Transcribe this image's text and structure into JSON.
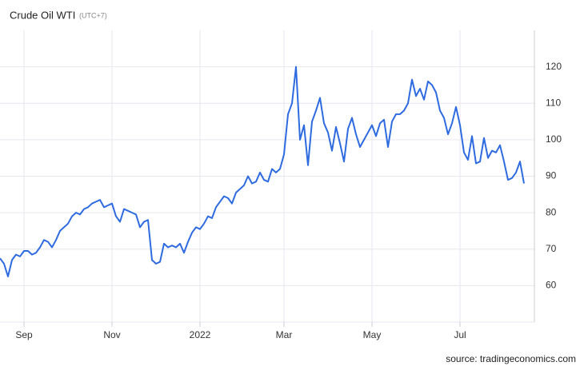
{
  "chart_data": {
    "type": "line",
    "title": "Crude Oil WTI",
    "subtitle": "(UTC+7)",
    "source": "source: tradingeconomics.com",
    "color": "#2e6be0",
    "grid": true,
    "ylim": [
      50,
      130
    ],
    "yticks": [
      60,
      70,
      80,
      90,
      100,
      110,
      120
    ],
    "categories": [
      null,
      null,
      null,
      null,
      null,
      null,
      "Sep",
      null,
      null,
      null,
      null,
      null,
      null,
      null,
      null,
      null,
      null,
      null,
      null,
      null,
      null,
      null,
      null,
      null,
      null,
      null,
      null,
      null,
      "Nov",
      null,
      null,
      null,
      null,
      null,
      null,
      null,
      null,
      null,
      null,
      null,
      null,
      null,
      null,
      null,
      null,
      null,
      null,
      null,
      null,
      null,
      "2022",
      null,
      null,
      null,
      null,
      null,
      null,
      null,
      null,
      null,
      null,
      null,
      null,
      null,
      null,
      null,
      null,
      null,
      null,
      null,
      null,
      "Mar",
      null,
      null,
      null,
      null,
      null,
      null,
      null,
      null,
      null,
      null,
      null,
      null,
      null,
      null,
      null,
      null,
      null,
      null,
      null,
      null,
      null,
      "May",
      null,
      null,
      null,
      null,
      null,
      null,
      null,
      null,
      null,
      null,
      null,
      null,
      null,
      null,
      null,
      null,
      null,
      null,
      null,
      null,
      null,
      "Jul",
      null,
      null,
      null,
      null,
      null,
      null,
      null,
      null,
      null,
      null,
      null,
      null,
      null,
      null,
      null,
      null
    ],
    "values": [
      67.5,
      66,
      62.5,
      67,
      68.5,
      68,
      69.5,
      69.5,
      68.5,
      69,
      70.5,
      72.5,
      72,
      70.5,
      72.5,
      75,
      76,
      77,
      79,
      80,
      79.5,
      81,
      81.5,
      82.5,
      83,
      83.5,
      81.5,
      82,
      82.5,
      79,
      77.5,
      81,
      80.5,
      80,
      79.5,
      76,
      77.5,
      78,
      67,
      66,
      66.5,
      71.5,
      70.5,
      71,
      70.5,
      71.5,
      69,
      72,
      74.5,
      76,
      75.5,
      77,
      79,
      78.5,
      81.5,
      83,
      84.5,
      84,
      82.5,
      85.5,
      86.5,
      87.5,
      90,
      88,
      88.5,
      91,
      89,
      88.5,
      92,
      91,
      92,
      96,
      107,
      110,
      120,
      100,
      104,
      93,
      105,
      108,
      111.5,
      104.5,
      102,
      97,
      103.5,
      99,
      94,
      103,
      106,
      101.5,
      98,
      100,
      102,
      104,
      101,
      104.5,
      105.5,
      98,
      105,
      107,
      107,
      108,
      110,
      116.5,
      112,
      114,
      111,
      116,
      115,
      113,
      108,
      106,
      101.5,
      104.5,
      109,
      104,
      96.5,
      94.5,
      101,
      93.5,
      94,
      100.5,
      95,
      97,
      96.5,
      98.5,
      94,
      89,
      89.5,
      91,
      94,
      88
    ]
  }
}
